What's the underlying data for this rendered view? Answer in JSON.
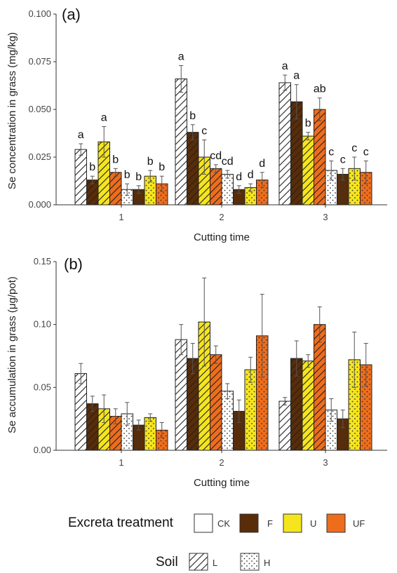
{
  "colors": {
    "CK": "#ffffff",
    "F": "#5a2c08",
    "U": "#f5e51e",
    "UF": "#ee6d1c"
  },
  "legend": {
    "treatment_title": "Excreta treatment",
    "treatment_items": [
      "CK",
      "F",
      "U",
      "UF"
    ],
    "soil_title": "Soil",
    "soil_items": [
      "L",
      "H"
    ]
  },
  "chart_data": [
    {
      "panel_label": "(a)",
      "type": "bar",
      "ylabel": "Se concentration in grass (mg/kg)",
      "xlabel": "Cutting time",
      "ylim": [
        0,
        0.1
      ],
      "yticks": [
        0.0,
        0.025,
        0.05,
        0.075,
        0.1
      ],
      "ytick_labels": [
        "0.000",
        "0.025",
        "0.050",
        "0.075",
        "0.100"
      ],
      "categories": [
        "1",
        "2",
        "3"
      ],
      "grid": false,
      "bar_order": [
        "CK-L",
        "F-L",
        "U-L",
        "UF-L",
        "CK-H",
        "F-H",
        "U-H",
        "UF-H"
      ],
      "series": [
        {
          "name": "CK L",
          "treatment": "CK",
          "soil": "L",
          "values": [
            0.029,
            0.066,
            0.064
          ],
          "errors": [
            0.003,
            0.007,
            0.004
          ],
          "letters": [
            "a",
            "a",
            "a"
          ]
        },
        {
          "name": "F L",
          "treatment": "F",
          "soil": "L",
          "values": [
            0.013,
            0.038,
            0.054
          ],
          "errors": [
            0.002,
            0.004,
            0.009
          ],
          "letters": [
            "b",
            "b",
            "a"
          ]
        },
        {
          "name": "U L",
          "treatment": "U",
          "soil": "L",
          "values": [
            0.033,
            0.025,
            0.036
          ],
          "errors": [
            0.008,
            0.009,
            0.002
          ],
          "letters": [
            "a",
            "c",
            "b"
          ]
        },
        {
          "name": "UF L",
          "treatment": "UF",
          "soil": "L",
          "values": [
            0.017,
            0.019,
            0.05
          ],
          "errors": [
            0.002,
            0.002,
            0.006
          ],
          "letters": [
            "b",
            "cd",
            "ab"
          ]
        },
        {
          "name": "CK H",
          "treatment": "CK",
          "soil": "H",
          "values": [
            0.008,
            0.016,
            0.018
          ],
          "errors": [
            0.003,
            0.002,
            0.005
          ],
          "letters": [
            "b",
            "cd",
            "c"
          ]
        },
        {
          "name": "F H",
          "treatment": "F",
          "soil": "H",
          "values": [
            0.008,
            0.008,
            0.016
          ],
          "errors": [
            0.002,
            0.002,
            0.003
          ],
          "letters": [
            "b",
            "d",
            "c"
          ]
        },
        {
          "name": "U H",
          "treatment": "U",
          "soil": "H",
          "values": [
            0.015,
            0.009,
            0.019
          ],
          "errors": [
            0.003,
            0.002,
            0.006
          ],
          "letters": [
            "b",
            "d",
            "c"
          ]
        },
        {
          "name": "UF H",
          "treatment": "UF",
          "soil": "H",
          "values": [
            0.011,
            0.013,
            0.017
          ],
          "errors": [
            0.004,
            0.004,
            0.006
          ],
          "letters": [
            "b",
            "d",
            "c"
          ]
        }
      ]
    },
    {
      "panel_label": "(b)",
      "type": "bar",
      "ylabel": "Se accumulation in grass (μg/pot)",
      "xlabel": "Cutting time",
      "ylim": [
        0,
        0.15
      ],
      "yticks": [
        0.0,
        0.05,
        0.1,
        0.15
      ],
      "ytick_labels": [
        "0.00",
        "0.05",
        "0.10",
        "0.15"
      ],
      "categories": [
        "1",
        "2",
        "3"
      ],
      "grid": false,
      "bar_order": [
        "CK-L",
        "F-L",
        "U-L",
        "UF-L",
        "CK-H",
        "F-H",
        "U-H",
        "UF-H"
      ],
      "series": [
        {
          "name": "CK L",
          "treatment": "CK",
          "soil": "L",
          "values": [
            0.061,
            0.088,
            0.039
          ],
          "errors": [
            0.008,
            0.012,
            0.003
          ],
          "letters": [
            "",
            "",
            ""
          ]
        },
        {
          "name": "F L",
          "treatment": "F",
          "soil": "L",
          "values": [
            0.037,
            0.073,
            0.073
          ],
          "errors": [
            0.006,
            0.012,
            0.014
          ],
          "letters": [
            "",
            "",
            ""
          ]
        },
        {
          "name": "U L",
          "treatment": "U",
          "soil": "L",
          "values": [
            0.033,
            0.102,
            0.071
          ],
          "errors": [
            0.011,
            0.035,
            0.005
          ],
          "letters": [
            "",
            "",
            ""
          ]
        },
        {
          "name": "UF L",
          "treatment": "UF",
          "soil": "L",
          "values": [
            0.027,
            0.076,
            0.1
          ],
          "errors": [
            0.006,
            0.007,
            0.014
          ],
          "letters": [
            "",
            "",
            ""
          ]
        },
        {
          "name": "CK H",
          "treatment": "CK",
          "soil": "H",
          "values": [
            0.029,
            0.047,
            0.032
          ],
          "errors": [
            0.009,
            0.006,
            0.009
          ],
          "letters": [
            "",
            "",
            ""
          ]
        },
        {
          "name": "F H",
          "treatment": "F",
          "soil": "H",
          "values": [
            0.02,
            0.031,
            0.025
          ],
          "errors": [
            0.004,
            0.009,
            0.007
          ],
          "letters": [
            "",
            "",
            ""
          ]
        },
        {
          "name": "U H",
          "treatment": "U",
          "soil": "H",
          "values": [
            0.026,
            0.064,
            0.072
          ],
          "errors": [
            0.003,
            0.01,
            0.022
          ],
          "letters": [
            "",
            "",
            ""
          ]
        },
        {
          "name": "UF H",
          "treatment": "UF",
          "soil": "H",
          "values": [
            0.016,
            0.091,
            0.068
          ],
          "errors": [
            0.006,
            0.033,
            0.017
          ],
          "letters": [
            "",
            "",
            ""
          ]
        }
      ]
    }
  ]
}
